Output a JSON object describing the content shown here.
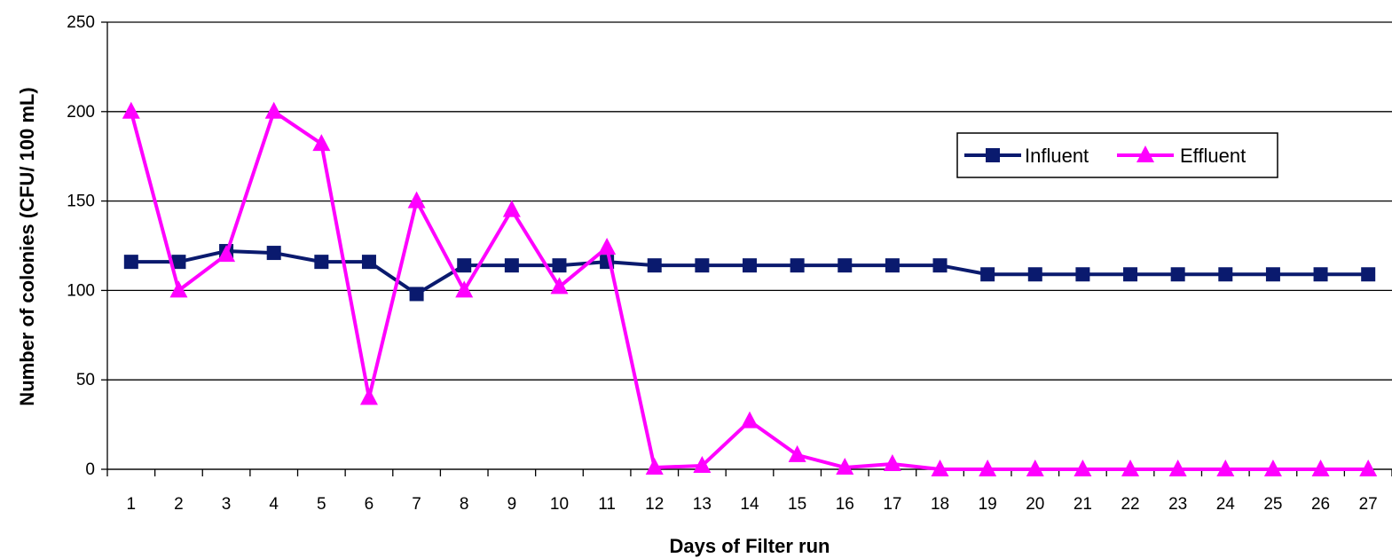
{
  "chart_data": {
    "type": "line",
    "title": "",
    "xlabel": "Days of Filter run",
    "ylabel": "Number of colonies (CFU/ 100 mL)",
    "categories": [
      "1",
      "2",
      "3",
      "4",
      "5",
      "6",
      "7",
      "8",
      "9",
      "10",
      "11",
      "12",
      "13",
      "14",
      "15",
      "16",
      "17",
      "18",
      "19",
      "20",
      "21",
      "22",
      "23",
      "24",
      "25",
      "26",
      "27"
    ],
    "ylim": [
      0,
      250
    ],
    "yticks": [
      0,
      50,
      100,
      150,
      200,
      250
    ],
    "grid": "horizontal",
    "legend": "upper-right, inside plot",
    "series": [
      {
        "name": "Influent",
        "color": "#0a1a6e",
        "marker": "square",
        "values": [
          116,
          116,
          122,
          121,
          116,
          116,
          98,
          114,
          114,
          114,
          116,
          114,
          114,
          114,
          114,
          114,
          114,
          114,
          109,
          109,
          109,
          109,
          109,
          109,
          109,
          109,
          109
        ]
      },
      {
        "name": "Effluent",
        "color": "#ff00ff",
        "marker": "triangle",
        "values": [
          200,
          100,
          120,
          200,
          182,
          40,
          150,
          100,
          145,
          102,
          124,
          1,
          2,
          27,
          8,
          1,
          3,
          0,
          0,
          0,
          0,
          0,
          0,
          0,
          0,
          0,
          0
        ]
      }
    ]
  }
}
